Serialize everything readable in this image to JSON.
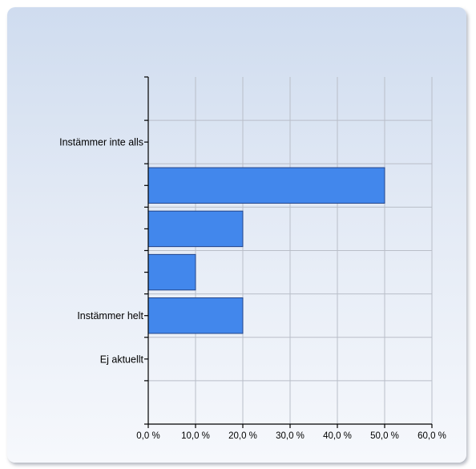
{
  "chart_data": {
    "type": "bar",
    "orientation": "horizontal",
    "categories": [
      "Instämmer inte alls",
      "",
      "",
      "",
      "Instämmer helt",
      "Ej aktuellt"
    ],
    "values": [
      0,
      50,
      20,
      10,
      20,
      0
    ],
    "xlim": [
      0,
      60
    ],
    "xticks": [
      0,
      10,
      20,
      30,
      40,
      50,
      60
    ],
    "xtick_labels": [
      "0,0 %",
      "10,0 %",
      "20,0 %",
      "30,0 %",
      "40,0 %",
      "50,0 %",
      "60,0 %"
    ],
    "grid": true,
    "bar_color": "#4287ec",
    "title": "",
    "xlabel": "",
    "ylabel": ""
  }
}
